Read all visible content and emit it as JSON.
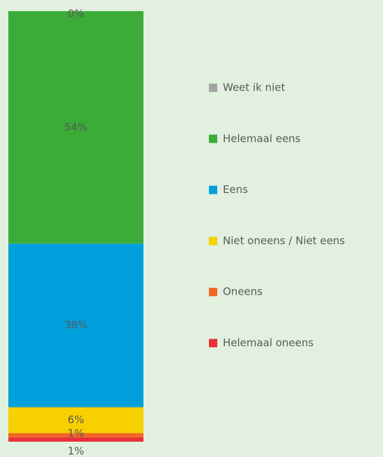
{
  "chart_data": {
    "type": "bar",
    "stacked": true,
    "categories": [
      null
    ],
    "series": [
      {
        "name": "Helemaal oneens",
        "color": "#e8303a",
        "values": [
          1
        ],
        "value_labels": [
          "1%"
        ]
      },
      {
        "name": "Oneens",
        "color": "#f26522",
        "values": [
          1
        ],
        "value_labels": [
          "1%"
        ]
      },
      {
        "name": "Niet oneens / Niet eens",
        "color": "#f7d000",
        "values": [
          6
        ],
        "value_labels": [
          "6%"
        ]
      },
      {
        "name": "Eens",
        "color": "#00a0dc",
        "values": [
          38
        ],
        "value_labels": [
          "38%"
        ]
      },
      {
        "name": "Helemaal eens",
        "color": "#3aac37",
        "values": [
          54
        ],
        "value_labels": [
          "54%"
        ]
      },
      {
        "name": "Weet ik niet",
        "color": "#a5a5a5",
        "values": [
          0
        ],
        "value_labels": [
          "0%"
        ]
      }
    ]
  }
}
